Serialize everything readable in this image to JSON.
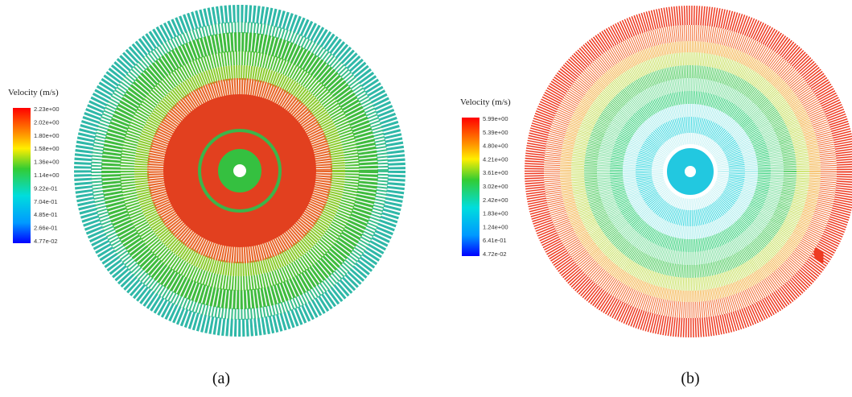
{
  "panels": [
    {
      "legend_title": "Velocity (m/s)",
      "legend_labels": [
        "2.23e+00",
        "2.02e+00",
        "1.80e+00",
        "1.58e+00",
        "1.36e+00",
        "1.14e+00",
        "9.22e-01",
        "7.04e-01",
        "4.85e-01",
        "2.66e-01",
        "4.77e-02"
      ],
      "caption": "(a)"
    },
    {
      "legend_title": "Velocity (m/s)",
      "legend_labels": [
        "5.99e+00",
        "5.39e+00",
        "4.80e+00",
        "4.21e+00",
        "3.61e+00",
        "3.02e+00",
        "2.42e+00",
        "1.83e+00",
        "1.24e+00",
        "6.41e-01",
        "4.72e-02"
      ],
      "caption": "(b)"
    }
  ]
}
